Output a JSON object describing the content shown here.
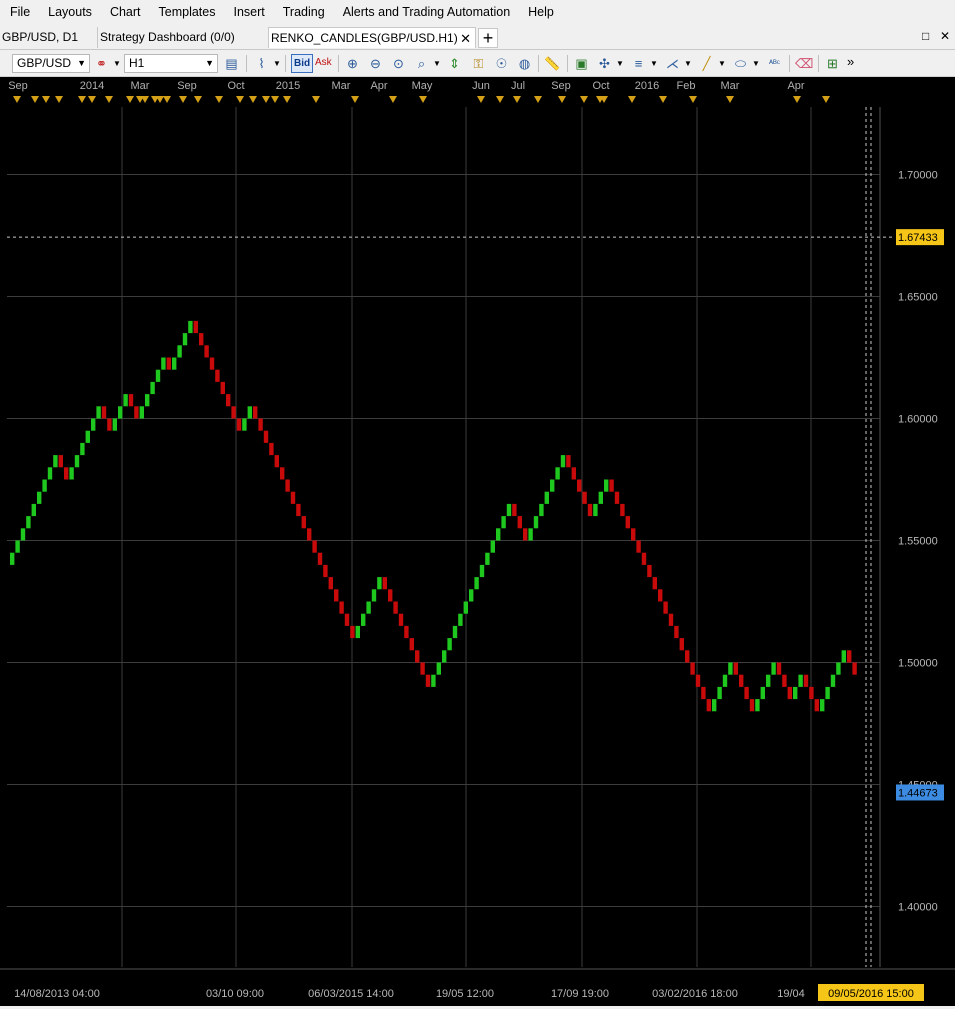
{
  "menu": [
    "File",
    "Layouts",
    "Chart",
    "Templates",
    "Insert",
    "Trading",
    "Alerts and Trading Automation",
    "Help"
  ],
  "tabs": [
    {
      "label": "GBP/USD, D1"
    },
    {
      "label": "Strategy Dashboard (0/0)"
    },
    {
      "label": "RENKO_CANDLES(GBP/USD.H1)",
      "active": true
    }
  ],
  "tab_close_glyph": "✕",
  "tab_add_glyph": "+",
  "window_controls": [
    "□",
    "✕"
  ],
  "toolbar": {
    "symbol": "GBP/USD",
    "timeframe": "H1",
    "bid_label": "Bid",
    "ask_label": "Ask",
    "icons": [
      "chart-properties-icon",
      "chart-type-icon",
      "zoom-in-icon",
      "zoom-out-icon",
      "zoom-fit-icon",
      "zoom-range-icon",
      "period-separator-icon",
      "lock-icon",
      "indicator-icon",
      "globe-icon",
      "ruler-icon",
      "picture-icon",
      "crosshair-icon",
      "lines-icon",
      "fan-icon",
      "trendline-icon",
      "ellipse-icon",
      "text-label-icon",
      "eraser-icon",
      "tree-icon"
    ],
    "more_glyph": "»"
  },
  "colors": {
    "bull": "#1ec81e",
    "bear": "#c80a0a",
    "grid": "#3c3c3c",
    "marker": "#d4a017",
    "current_price_bg": "#f5c518",
    "last_price_bg": "#3c8be0"
  },
  "top_axis_labels": [
    {
      "label": "Sep",
      "x": 18
    },
    {
      "label": "2014",
      "x": 92
    },
    {
      "label": "Mar",
      "x": 140
    },
    {
      "label": "Sep",
      "x": 187
    },
    {
      "label": "Oct",
      "x": 236
    },
    {
      "label": "2015",
      "x": 288
    },
    {
      "label": "Mar",
      "x": 341
    },
    {
      "label": "Apr",
      "x": 379
    },
    {
      "label": "May",
      "x": 422
    },
    {
      "label": "Jun",
      "x": 481
    },
    {
      "label": "Jul",
      "x": 518
    },
    {
      "label": "Sep",
      "x": 561
    },
    {
      "label": "Oct",
      "x": 601
    },
    {
      "label": "2016",
      "x": 647
    },
    {
      "label": "Feb",
      "x": 686
    },
    {
      "label": "Mar",
      "x": 730
    },
    {
      "label": "Apr",
      "x": 796
    }
  ],
  "event_markers": [
    17,
    35,
    46,
    59,
    82,
    92,
    109,
    130,
    140,
    145,
    155,
    160,
    167,
    183,
    198,
    219,
    240,
    253,
    266,
    275,
    287,
    316,
    355,
    393,
    423,
    481,
    500,
    517,
    538,
    562,
    584,
    600,
    604,
    632,
    663,
    693,
    730,
    797,
    826
  ],
  "bottom_axis_labels": [
    {
      "label": "14/08/2013 04:00",
      "x": 57
    },
    {
      "label": "03/10 09:00",
      "x": 235
    },
    {
      "label": "06/03/2015 14:00",
      "x": 351
    },
    {
      "label": "19/05 12:00",
      "x": 465
    },
    {
      "label": "17/09 19:00",
      "x": 580
    },
    {
      "label": "03/02/2016 18:00",
      "x": 695
    },
    {
      "label": "19/04",
      "x": 791
    }
  ],
  "bottom_current_label": "09/05/2016 15:00",
  "price_labels": [
    {
      "label": "1.70000",
      "value": 1.7
    },
    {
      "label": "1.65000",
      "value": 1.65
    },
    {
      "label": "1.60000",
      "value": 1.6
    },
    {
      "label": "1.55000",
      "value": 1.55
    },
    {
      "label": "1.50000",
      "value": 1.5
    },
    {
      "label": "1.45000",
      "value": 1.45
    },
    {
      "label": "1.40000",
      "value": 1.4
    }
  ],
  "crosshair_price": "1.67433",
  "crosshair_value": 1.67433,
  "last_price": "1.44673",
  "last_value": 1.44673,
  "chart_data": {
    "type": "renko",
    "symbol": "GBP/USD",
    "timeframe": "H1",
    "box_size": 0.005,
    "ylim": [
      1.38,
      1.72
    ],
    "start_price": 1.54,
    "moves": [
      1,
      1,
      1,
      1,
      1,
      1,
      1,
      1,
      1,
      -1,
      -1,
      1,
      1,
      1,
      1,
      1,
      1,
      -1,
      -1,
      1,
      1,
      1,
      -1,
      -1,
      1,
      1,
      1,
      1,
      1,
      -1,
      1,
      1,
      1,
      1,
      -1,
      -1,
      -1,
      -1,
      -1,
      -1,
      -1,
      -1,
      -1,
      1,
      1,
      -1,
      -1,
      -1,
      -1,
      -1,
      -1,
      -1,
      -1,
      -1,
      -1,
      -1,
      -1,
      -1,
      -1,
      -1,
      -1,
      -1,
      -1,
      -1,
      1,
      1,
      1,
      1,
      1,
      -1,
      -1,
      -1,
      -1,
      -1,
      -1,
      -1,
      -1,
      -1,
      1,
      1,
      1,
      1,
      1,
      1,
      1,
      1,
      1,
      1,
      1,
      1,
      1,
      1,
      1,
      -1,
      -1,
      -1,
      1,
      1,
      1,
      1,
      1,
      1,
      1,
      -1,
      -1,
      -1,
      -1,
      -1,
      1,
      1,
      1,
      -1,
      -1,
      -1,
      -1,
      -1,
      -1,
      -1,
      -1,
      -1,
      -1,
      -1,
      -1,
      -1,
      -1,
      -1,
      -1,
      -1,
      -1,
      -1,
      1,
      1,
      1,
      1,
      -1,
      -1,
      -1,
      -1,
      1,
      1,
      1,
      1,
      -1,
      -1,
      -1,
      1,
      1,
      -1,
      -1,
      -1,
      1,
      1,
      1,
      1,
      1,
      -1,
      -1
    ],
    "xlim_dates": [
      "14/08/2013 04:00",
      "09/05/2016 15:00"
    ]
  }
}
